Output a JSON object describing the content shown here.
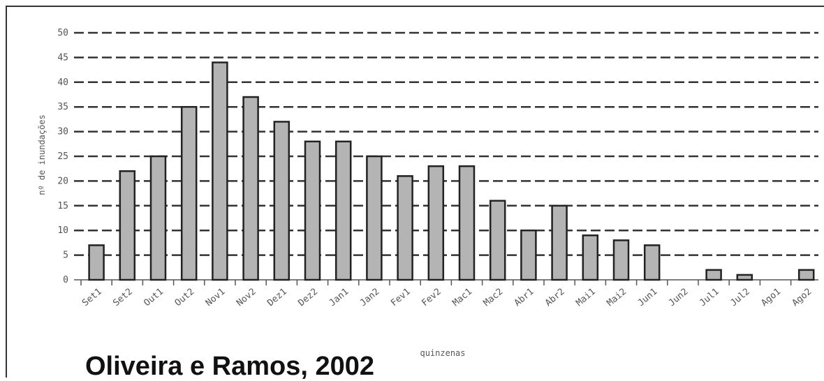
{
  "citation": "Oliveira e Ramos, 2002",
  "chart_data": {
    "type": "bar",
    "title": "",
    "xlabel": "quinzenas",
    "ylabel": "nº de inundações",
    "ylim": [
      0,
      50
    ],
    "yticks": [
      0,
      5,
      10,
      15,
      20,
      25,
      30,
      35,
      40,
      45,
      50
    ],
    "grid": true,
    "categories": [
      "Set1",
      "Set2",
      "Out1",
      "Out2",
      "Nov1",
      "Nov2",
      "Dez1",
      "Dez2",
      "Jan1",
      "Jan2",
      "Fev1",
      "Fev2",
      "Mac1",
      "Mac2",
      "Abr1",
      "Abr2",
      "Mai1",
      "Mai2",
      "Jun1",
      "Jun2",
      "Jul1",
      "Jul2",
      "Ago1",
      "Ago2"
    ],
    "values": [
      7,
      22,
      25,
      35,
      44,
      37,
      32,
      28,
      28,
      25,
      21,
      23,
      23,
      16,
      10,
      15,
      9,
      8,
      7,
      0,
      2,
      1,
      0,
      2
    ],
    "colors": {
      "bar": "#b4b4b4",
      "bar_stroke": "#222222",
      "grid": "#333333",
      "axis": "#555555"
    }
  }
}
